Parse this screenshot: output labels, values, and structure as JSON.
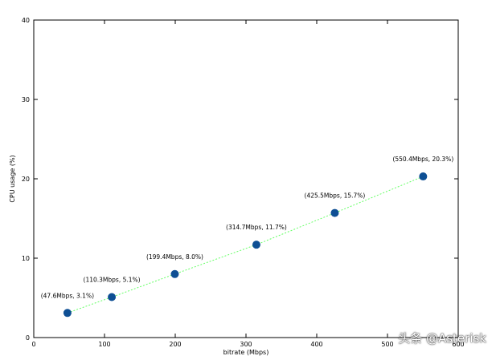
{
  "chart_data": {
    "type": "scatter",
    "xlabel": "bitrate (Mbps)",
    "ylabel": "CPU usage (%)",
    "xlim": [
      0,
      600
    ],
    "ylim": [
      0,
      40
    ],
    "x_ticks": [
      0,
      100,
      200,
      300,
      400,
      500,
      600
    ],
    "x_tick_labels": [
      "0",
      "100",
      "200",
      "300",
      "400",
      "500",
      "600"
    ],
    "y_ticks": [
      0,
      10,
      20,
      30,
      40
    ],
    "y_tick_labels": [
      "0",
      "10",
      "20",
      "30",
      "40"
    ],
    "grid": false,
    "series": [
      {
        "x": [
          47.6,
          110.3,
          199.4,
          314.7,
          425.5,
          550.4
        ],
        "y": [
          3.1,
          5.1,
          8.0,
          11.7,
          15.7,
          20.3
        ],
        "labels": [
          "(47.6Mbps, 3.1%)",
          "(110.3Mbps, 5.1%)",
          "(199.4Mbps, 8.0%)",
          "(314.7Mbps, 11.7%)",
          "(425.5Mbps, 15.7%)",
          "(550.4Mbps, 20.3%)"
        ],
        "color": "#0e4f94",
        "fit_line_color": "#66ff66"
      }
    ]
  },
  "watermark": "头条 @Asterisk"
}
